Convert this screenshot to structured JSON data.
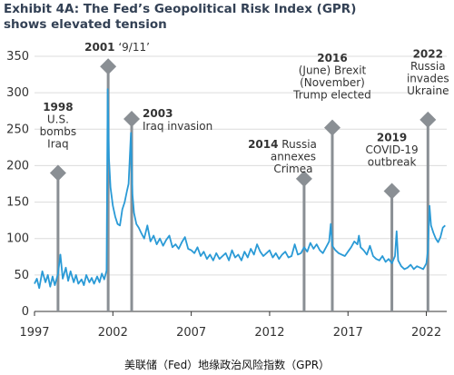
{
  "title": "Exhibit 4A: The Fed’s Geopolitical Risk Index (GPR) shows elevated tension",
  "caption": "美联储（Fed）地缘政治风险指数（GPR）",
  "colors": {
    "line": "#2a9ad6",
    "marker": "#8a8f94",
    "grid": "#dcdcdc",
    "axis": "#333333"
  },
  "chart_data": {
    "type": "line",
    "title": "Exhibit 4A: The Fed’s Geopolitical Risk Index (GPR) shows elevated tension",
    "xlabel": "",
    "ylabel": "",
    "xlim": [
      1997,
      2023.3
    ],
    "ylim": [
      0,
      350
    ],
    "x_ticks": [
      "1997",
      "2002",
      "2007",
      "2012",
      "2017",
      "2022"
    ],
    "y_ticks": [
      "0",
      "50",
      "100",
      "150",
      "200",
      "250",
      "300",
      "350"
    ],
    "grid": "horizontal",
    "series": [
      {
        "points": [
          [
            1997.0,
            38
          ],
          [
            1997.15,
            45
          ],
          [
            1997.3,
            32
          ],
          [
            1997.5,
            55
          ],
          [
            1997.7,
            40
          ],
          [
            1997.85,
            50
          ],
          [
            1998.0,
            34
          ],
          [
            1998.15,
            48
          ],
          [
            1998.3,
            36
          ],
          [
            1998.5,
            52
          ],
          [
            1998.65,
            78
          ],
          [
            1998.8,
            45
          ],
          [
            1999.0,
            60
          ],
          [
            1999.15,
            42
          ],
          [
            1999.3,
            55
          ],
          [
            1999.5,
            40
          ],
          [
            1999.65,
            50
          ],
          [
            1999.8,
            38
          ],
          [
            2000.0,
            44
          ],
          [
            2000.15,
            36
          ],
          [
            2000.3,
            50
          ],
          [
            2000.5,
            40
          ],
          [
            2000.65,
            46
          ],
          [
            2000.8,
            38
          ],
          [
            2001.0,
            48
          ],
          [
            2001.15,
            40
          ],
          [
            2001.3,
            52
          ],
          [
            2001.45,
            44
          ],
          [
            2001.6,
            56
          ],
          [
            2001.67,
            305
          ],
          [
            2001.75,
            210
          ],
          [
            2001.85,
            170
          ],
          [
            2002.0,
            145
          ],
          [
            2002.15,
            130
          ],
          [
            2002.3,
            120
          ],
          [
            2002.45,
            118
          ],
          [
            2002.6,
            140
          ],
          [
            2002.75,
            150
          ],
          [
            2002.9,
            165
          ],
          [
            2003.0,
            175
          ],
          [
            2003.15,
            245
          ],
          [
            2003.25,
            160
          ],
          [
            2003.35,
            135
          ],
          [
            2003.5,
            120
          ],
          [
            2003.65,
            115
          ],
          [
            2003.8,
            108
          ],
          [
            2004.0,
            100
          ],
          [
            2004.2,
            118
          ],
          [
            2004.4,
            96
          ],
          [
            2004.6,
            104
          ],
          [
            2004.8,
            92
          ],
          [
            2005.0,
            100
          ],
          [
            2005.2,
            90
          ],
          [
            2005.4,
            98
          ],
          [
            2005.6,
            104
          ],
          [
            2005.8,
            88
          ],
          [
            2006.0,
            92
          ],
          [
            2006.2,
            86
          ],
          [
            2006.4,
            95
          ],
          [
            2006.6,
            102
          ],
          [
            2006.8,
            86
          ],
          [
            2007.0,
            84
          ],
          [
            2007.2,
            80
          ],
          [
            2007.4,
            88
          ],
          [
            2007.6,
            76
          ],
          [
            2007.8,
            82
          ],
          [
            2008.0,
            72
          ],
          [
            2008.2,
            78
          ],
          [
            2008.4,
            70
          ],
          [
            2008.6,
            80
          ],
          [
            2008.8,
            72
          ],
          [
            2009.0,
            76
          ],
          [
            2009.2,
            80
          ],
          [
            2009.4,
            70
          ],
          [
            2009.6,
            84
          ],
          [
            2009.8,
            74
          ],
          [
            2010.0,
            78
          ],
          [
            2010.2,
            70
          ],
          [
            2010.4,
            82
          ],
          [
            2010.6,
            74
          ],
          [
            2010.8,
            86
          ],
          [
            2011.0,
            78
          ],
          [
            2011.2,
            92
          ],
          [
            2011.4,
            82
          ],
          [
            2011.6,
            76
          ],
          [
            2011.8,
            80
          ],
          [
            2012.0,
            84
          ],
          [
            2012.2,
            74
          ],
          [
            2012.4,
            80
          ],
          [
            2012.6,
            72
          ],
          [
            2012.8,
            78
          ],
          [
            2013.0,
            82
          ],
          [
            2013.2,
            74
          ],
          [
            2013.4,
            76
          ],
          [
            2013.6,
            92
          ],
          [
            2013.8,
            78
          ],
          [
            2014.0,
            80
          ],
          [
            2014.2,
            88
          ],
          [
            2014.4,
            82
          ],
          [
            2014.6,
            94
          ],
          [
            2014.8,
            86
          ],
          [
            2015.0,
            92
          ],
          [
            2015.2,
            84
          ],
          [
            2015.4,
            80
          ],
          [
            2015.6,
            88
          ],
          [
            2015.8,
            96
          ],
          [
            2015.9,
            120
          ],
          [
            2016.0,
            90
          ],
          [
            2016.2,
            84
          ],
          [
            2016.4,
            80
          ],
          [
            2016.6,
            78
          ],
          [
            2016.8,
            76
          ],
          [
            2017.0,
            82
          ],
          [
            2017.2,
            88
          ],
          [
            2017.4,
            96
          ],
          [
            2017.6,
            92
          ],
          [
            2017.7,
            104
          ],
          [
            2017.8,
            88
          ],
          [
            2018.0,
            84
          ],
          [
            2018.2,
            78
          ],
          [
            2018.4,
            90
          ],
          [
            2018.6,
            76
          ],
          [
            2018.8,
            72
          ],
          [
            2019.0,
            70
          ],
          [
            2019.2,
            76
          ],
          [
            2019.4,
            68
          ],
          [
            2019.6,
            72
          ],
          [
            2019.8,
            66
          ],
          [
            2020.0,
            76
          ],
          [
            2020.1,
            110
          ],
          [
            2020.2,
            70
          ],
          [
            2020.4,
            62
          ],
          [
            2020.6,
            58
          ],
          [
            2020.8,
            60
          ],
          [
            2021.0,
            64
          ],
          [
            2021.2,
            58
          ],
          [
            2021.4,
            62
          ],
          [
            2021.6,
            60
          ],
          [
            2021.8,
            58
          ],
          [
            2022.0,
            66
          ],
          [
            2022.1,
            84
          ],
          [
            2022.2,
            145
          ],
          [
            2022.3,
            118
          ],
          [
            2022.45,
            108
          ],
          [
            2022.6,
            100
          ],
          [
            2022.75,
            95
          ],
          [
            2022.9,
            102
          ],
          [
            2023.05,
            115
          ],
          [
            2023.2,
            118
          ]
        ]
      }
    ],
    "annotations": [
      {
        "x": 1998.5,
        "y_marker": 190,
        "year": "1998",
        "text": [
          "U.S.",
          "bombs",
          "Iraq"
        ]
      },
      {
        "x": 2001.7,
        "y_marker": 336,
        "year": "2001",
        "text": [
          "‘9/11’"
        ]
      },
      {
        "x": 2003.2,
        "y_marker": 264,
        "year": "2003",
        "text": [
          "Iraq invasion"
        ]
      },
      {
        "x": 2014.2,
        "y_marker": 182,
        "year": "2014",
        "text": [
          "Russia",
          "annexes",
          "Crimea"
        ]
      },
      {
        "x": 2016.0,
        "y_marker": 252,
        "year": "2016",
        "text": [
          "(June) Brexit",
          "(November)",
          "Trump elected"
        ]
      },
      {
        "x": 2019.8,
        "y_marker": 165,
        "year": "2019",
        "text": [
          "COVID-19",
          "outbreak"
        ]
      },
      {
        "x": 2022.1,
        "y_marker": 263,
        "year": "2022",
        "text": [
          "Russia",
          "invades",
          "Ukraine"
        ]
      }
    ]
  }
}
